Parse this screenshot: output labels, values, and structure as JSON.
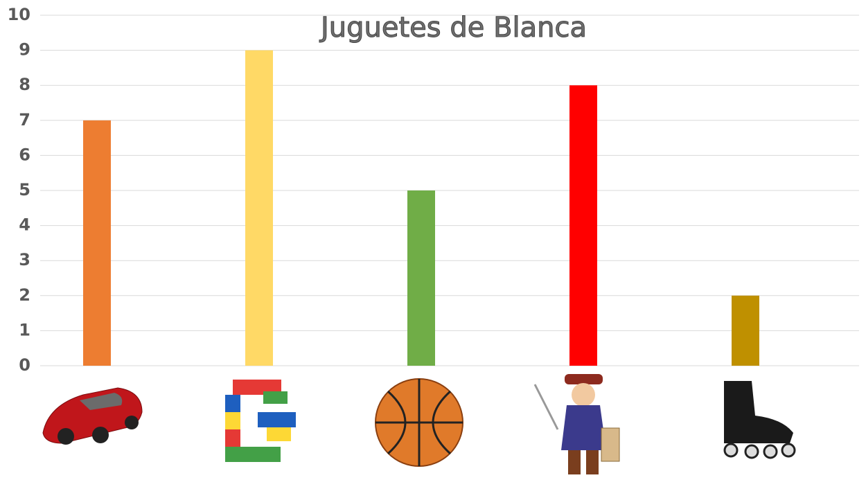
{
  "chart_data": {
    "type": "bar",
    "title": "Juguetes de Blanca",
    "categories": [
      null,
      null,
      null,
      null,
      null
    ],
    "values": [
      7,
      9,
      5,
      8,
      2
    ],
    "colors": [
      "#ed7d31",
      "#ffd966",
      "#70ad47",
      "#ff0000",
      "#bf9000"
    ],
    "ylim": [
      0,
      10
    ],
    "yticks": [
      0,
      1,
      2,
      3,
      4,
      5,
      6,
      7,
      8,
      9,
      10
    ],
    "grid": true
  }
}
